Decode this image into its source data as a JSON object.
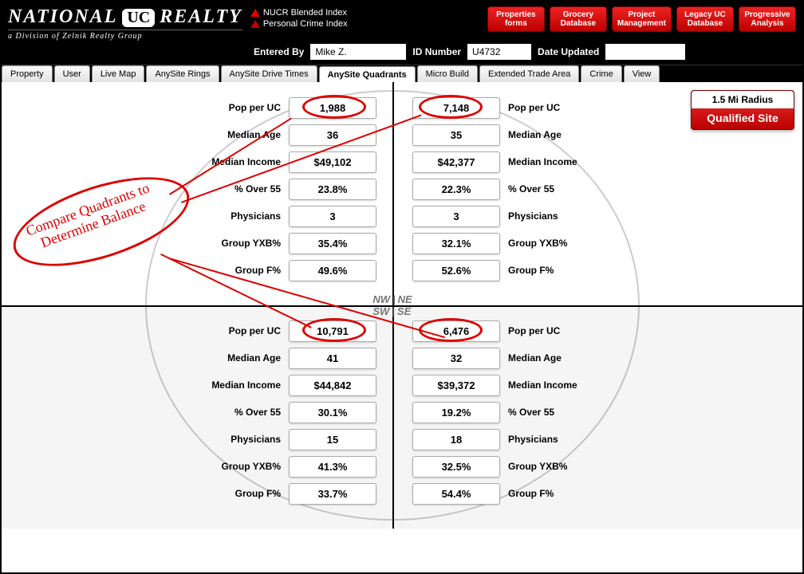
{
  "brand": {
    "name_left": "NATIONAL",
    "badge": "UC",
    "name_right": "REALTY",
    "subtitle": "a Division of Zelnik Realty Group"
  },
  "indices": {
    "blended": "NUCR Blended Index",
    "personal": "Personal Crime Index"
  },
  "header_buttons": [
    {
      "l1": "Properties",
      "l2": "forms"
    },
    {
      "l1": "Grocery",
      "l2": "Database"
    },
    {
      "l1": "Project",
      "l2": "Management"
    },
    {
      "l1": "Legacy UC",
      "l2": "Database"
    },
    {
      "l1": "Progressive",
      "l2": "Analysis"
    }
  ],
  "header_fields": {
    "entered_by_label": "Entered By",
    "entered_by_value": "Mike Z.",
    "id_label": "ID Number",
    "id_value": "U4732",
    "date_label": "Date Updated",
    "date_value": ""
  },
  "tabs": [
    "Property",
    "User",
    "Live Map",
    "AnySite Rings",
    "AnySite Drive Times",
    "AnySite Quadrants",
    "Micro Build",
    "Extended Trade Area",
    "Crime",
    "View"
  ],
  "active_tab": "AnySite Quadrants",
  "metrics": [
    "Pop per UC",
    "Median Age",
    "Median Income",
    "% Over 55",
    "Physicians",
    "Group YXB%",
    "Group F%"
  ],
  "quadrants": {
    "NW": [
      "1,988",
      "36",
      "$49,102",
      "23.8%",
      "3",
      "35.4%",
      "49.6%"
    ],
    "NE": [
      "7,148",
      "35",
      "$42,377",
      "22.3%",
      "3",
      "32.1%",
      "52.6%"
    ],
    "SW": [
      "10,791",
      "41",
      "$44,842",
      "30.1%",
      "15",
      "41.3%",
      "33.7%"
    ],
    "SE": [
      "6,476",
      "32",
      "$39,372",
      "19.2%",
      "18",
      "32.5%",
      "54.4%"
    ]
  },
  "compass": {
    "nw": "NW",
    "ne": "NE",
    "sw": "SW",
    "se": "SE"
  },
  "qualified": {
    "radius": "1.5 Mi Radius",
    "text": "Qualified Site"
  },
  "annotation": {
    "line1": "Compare Quadrants to",
    "line2": "Determine Balance"
  },
  "colors": {
    "red": "#d00e0e",
    "header_bg": "#000000",
    "circle": "#cccccc"
  }
}
